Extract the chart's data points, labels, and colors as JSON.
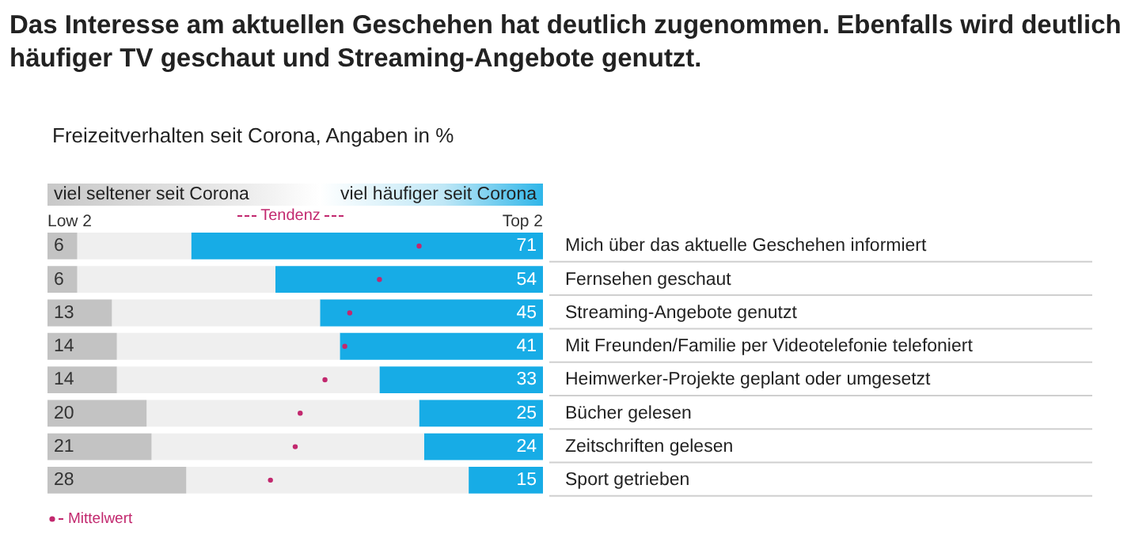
{
  "chart_data": {
    "type": "bar",
    "orientation": "horizontal",
    "title": "Das Interesse am aktuellen Geschehen hat deutlich zugenommen. Ebenfalls wird deutlich häufiger TV geschaut und Streaming-Angebote genutzt.",
    "subtitle": "Freizeitverhalten seit Corona, Angaben in %",
    "categories": [
      "Mich über das aktuelle Geschehen informiert",
      "Fernsehen geschaut",
      "Streaming-Angebote genutzt",
      "Mit Freunden/Familie per Videotelefonie telefoniert",
      "Heimwerker-Projekte geplant oder umgesetzt",
      "Bücher gelesen",
      "Zeitschriften gelesen",
      "Sport getrieben"
    ],
    "series": [
      {
        "name": "Low 2",
        "color": "#c3c3c3",
        "values": [
          6,
          6,
          13,
          14,
          14,
          20,
          21,
          28
        ],
        "value_labels": [
          "6",
          "6",
          "13",
          "14",
          "14",
          "20",
          "21",
          "28"
        ]
      },
      {
        "color": "#efefef",
        "values": [
          23,
          40,
          42,
          45,
          53,
          55,
          55,
          57
        ]
      },
      {
        "name": "Top 2",
        "color": "#17ace6",
        "values": [
          71,
          54,
          45,
          41,
          33,
          25,
          24,
          15
        ],
        "value_labels": [
          "71",
          "54",
          "45",
          "41",
          "33",
          "25",
          "24",
          "15"
        ]
      },
      {
        "name": "Mittelwert",
        "type": "scatter",
        "color": "#c2286e",
        "marker": "circle",
        "values": [
          75,
          67,
          61,
          60,
          56,
          51,
          50,
          45
        ]
      }
    ],
    "stacked": true,
    "xlim": [
      0,
      100
    ],
    "tick_labels": "y",
    "grid": false,
    "legend": "bottom left",
    "annotations": [
      "viel seltener seit Corona",
      "viel häufiger seit Corona",
      "Tendenz"
    ]
  }
}
